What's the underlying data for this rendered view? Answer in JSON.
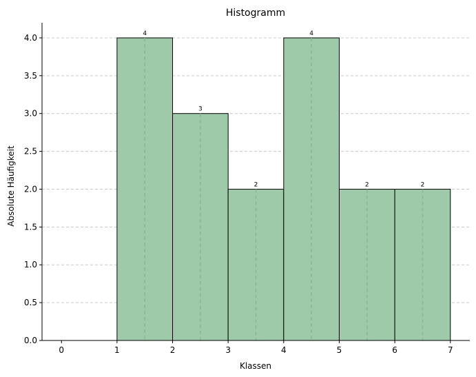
{
  "chart_data": {
    "type": "bar",
    "title": "Histogramm",
    "xlabel": "Klassen",
    "ylabel": "Absolute Häufigkeit",
    "bins": [
      {
        "start": 0,
        "end": 1,
        "value": 0
      },
      {
        "start": 1,
        "end": 2,
        "value": 4
      },
      {
        "start": 2,
        "end": 3,
        "value": 3
      },
      {
        "start": 3,
        "end": 4,
        "value": 2
      },
      {
        "start": 4,
        "end": 5,
        "value": 4
      },
      {
        "start": 5,
        "end": 6,
        "value": 2
      },
      {
        "start": 6,
        "end": 7,
        "value": 2
      }
    ],
    "data_labels": [
      "4",
      "3",
      "2",
      "4",
      "2",
      "2"
    ],
    "xlim": [
      -0.35,
      7.35
    ],
    "ylim": [
      0,
      4.2
    ],
    "x_ticks": [
      "0",
      "1",
      "2",
      "3",
      "4",
      "5",
      "6",
      "7"
    ],
    "y_ticks": [
      "0.0",
      "0.5",
      "1.0",
      "1.5",
      "2.0",
      "2.5",
      "3.0",
      "3.5",
      "4.0"
    ],
    "grid": "y-dashed",
    "bar_color": "#9fcaaa",
    "edge_color": "#000000",
    "grid_color": "#c8c8c8"
  }
}
